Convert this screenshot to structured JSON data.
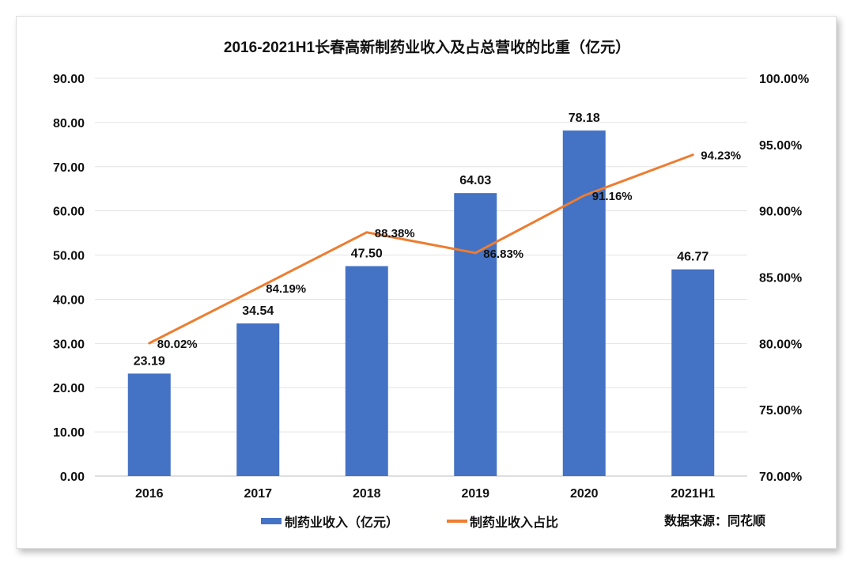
{
  "chart_data": {
    "type": "bar+line",
    "title": "2016-2021H1长春高新制药业收入及占总营收的比重（亿元）",
    "categories": [
      "2016",
      "2017",
      "2018",
      "2019",
      "2020",
      "2021H1"
    ],
    "series": [
      {
        "name": "制药业收入（亿元）",
        "type": "bar",
        "axis": "left",
        "values": [
          23.19,
          34.54,
          47.5,
          64.03,
          78.18,
          46.77
        ],
        "labels": [
          "23.19",
          "34.54",
          "47.50",
          "64.03",
          "78.18",
          "46.77"
        ],
        "color": "#4472C4"
      },
      {
        "name": "制药业收入占比",
        "type": "line",
        "axis": "right",
        "values": [
          80.02,
          84.19,
          88.38,
          86.83,
          91.16,
          94.23
        ],
        "labels": [
          "80.02%",
          "84.19%",
          "88.38%",
          "86.83%",
          "91.16%",
          "94.23%"
        ],
        "color": "#ED7D31"
      }
    ],
    "left_axis": {
      "range": [
        0,
        90
      ],
      "ticks": [
        "0.00",
        "10.00",
        "20.00",
        "30.00",
        "40.00",
        "50.00",
        "60.00",
        "70.00",
        "80.00",
        "90.00"
      ]
    },
    "right_axis": {
      "range": [
        70,
        100
      ],
      "ticks": [
        "70.00%",
        "75.00%",
        "80.00%",
        "85.00%",
        "90.00%",
        "95.00%",
        "100.00%"
      ]
    },
    "grid": true,
    "legend": "bottom",
    "source": "数据来源：同花顺"
  }
}
